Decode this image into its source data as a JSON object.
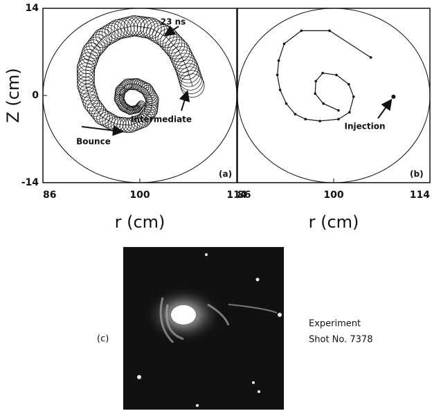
{
  "chart_data": [
    {
      "type": "line",
      "marker": "gyro-circle",
      "xlabel": "r (cm)",
      "ylabel": "Z (cm)",
      "xlim": [
        86,
        114
      ],
      "ylim": [
        -14,
        14
      ],
      "xticks": [
        86,
        100,
        114
      ],
      "yticks": [
        -14,
        0,
        14
      ],
      "series": [
        {
          "x": [
            107.6,
            106.8,
            105.6,
            103.8,
            101.6,
            99.2,
            96.8,
            94.6,
            93,
            92.2,
            92.2,
            93,
            94.5,
            96.5,
            98.6,
            100.5,
            101.6,
            101.8,
            101.0,
            99.6,
            98.2,
            97.2,
            97,
            97.6,
            98.6,
            99.6,
            100.2
          ],
          "values": [
            1.6,
            4.4,
            7.2,
            9.4,
            10.8,
            11.2,
            10.6,
            9.2,
            7,
            4.4,
            1.6,
            -1.2,
            -3.4,
            -4.6,
            -4.8,
            -4,
            -2.4,
            -0.6,
            1,
            1.8,
            1.8,
            0.8,
            -0.6,
            -1.8,
            -2.4,
            -2.2,
            -1.4
          ]
        }
      ],
      "annotations": [
        "23 ns",
        "Intermediate",
        "Bounce",
        "(a)"
      ]
    },
    {
      "type": "line",
      "marker": "dot",
      "xlabel": "r (cm)",
      "xlim": [
        86,
        114
      ],
      "ylim": [
        -14,
        14
      ],
      "xticks": [
        86,
        100,
        114
      ],
      "series": [
        {
          "x": [
            105.4,
            99.4,
            95.3,
            92.8,
            92,
            91.8,
            92.2,
            93.1,
            94.4,
            95.9,
            98,
            100.7,
            102.3,
            102.9,
            102.2,
            100.4,
            98.4,
            97.4,
            97.3,
            98.5,
            100.7
          ],
          "values": [
            6.1,
            10.4,
            10.4,
            8.3,
            5.6,
            3.3,
            0.9,
            -1.3,
            -3,
            -3.8,
            -4.1,
            -3.8,
            -2.7,
            -0.2,
            1.8,
            3.3,
            3.6,
            2.3,
            0.3,
            -1.3,
            -2.4
          ]
        },
        {
          "x": [
            108.7
          ],
          "values": [
            -0.2
          ]
        }
      ],
      "annotations": [
        "Injection",
        "(b)"
      ]
    }
  ],
  "photo": {
    "label": "(c)",
    "caption": [
      "Experiment",
      "Shot No. 7378"
    ]
  }
}
